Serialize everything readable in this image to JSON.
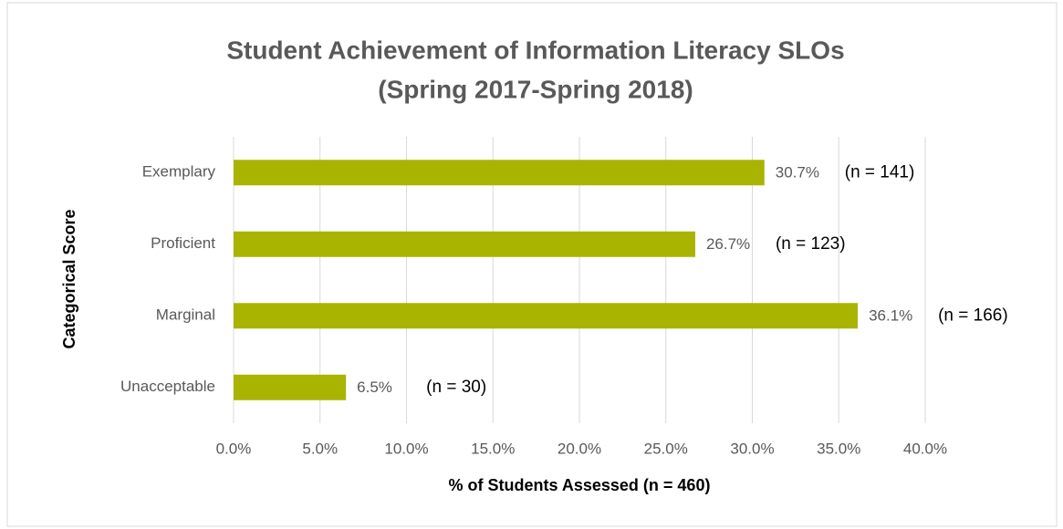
{
  "chart_data": {
    "type": "bar",
    "orientation": "horizontal",
    "title": [
      "Student Achievement of Information Literacy SLOs",
      "(Spring 2017-Spring 2018)"
    ],
    "x_label": "% of Students Assessed (n = 460)",
    "y_label": "Categorical Score",
    "categories": [
      "Exemplary",
      "Proficient",
      "Marginal",
      "Unacceptable"
    ],
    "values": [
      30.7,
      26.7,
      36.1,
      6.5
    ],
    "value_labels": [
      "30.7%",
      "26.7%",
      "36.1%",
      "6.5%"
    ],
    "annotations": [
      "(n = 141)",
      "(n = 123)",
      "(n = 166)",
      "(n = 30)"
    ],
    "color": "#a9b400",
    "xlim": [
      0,
      40
    ],
    "xticks": [
      {
        "value": 0,
        "label": "0.0%"
      },
      {
        "value": 5,
        "label": "5.0%"
      },
      {
        "value": 10,
        "label": "10.0%"
      },
      {
        "value": 15,
        "label": "15.0%"
      },
      {
        "value": 20,
        "label": "20.0%"
      },
      {
        "value": 25,
        "label": "25.0%"
      },
      {
        "value": 30,
        "label": "30.0%"
      },
      {
        "value": 35,
        "label": "35.0%"
      },
      {
        "value": 40,
        "label": "40.0%"
      }
    ],
    "grid": true
  }
}
